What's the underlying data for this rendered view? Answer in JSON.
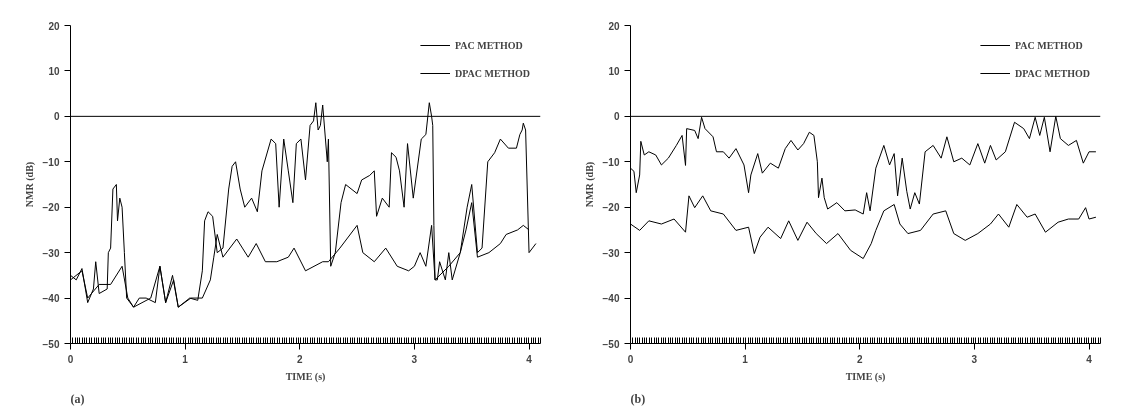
{
  "chart_data": [
    {
      "type": "line",
      "xlabel": "TIME (s)",
      "ylabel": "NMR (dB)",
      "annotations": [
        "(a)"
      ],
      "xlim": [
        0,
        4.1
      ],
      "ylim": [
        -50,
        20
      ],
      "xticks": [
        0,
        1,
        2,
        3,
        4
      ],
      "yticks": [
        -50,
        -40,
        -30,
        -20,
        -10,
        0,
        10,
        20
      ],
      "grid": false,
      "legend": "top right",
      "marker": "none",
      "line_style": "solid",
      "ref_lines": [
        {
          "axis": "y",
          "value": 0,
          "color": "#000000"
        }
      ],
      "series": [
        {
          "name": "PAC METHOD",
          "color": "#000000",
          "x": [
            0,
            0.05,
            0.1,
            0.15,
            0.2,
            0.22,
            0.25,
            0.32,
            0.33,
            0.35,
            0.37,
            0.4,
            0.41,
            0.43,
            0.45,
            0.47,
            0.49,
            0.55,
            0.6,
            0.66,
            0.74,
            0.78,
            0.83,
            0.89,
            0.94,
            1.04,
            1.11,
            1.15,
            1.17,
            1.2,
            1.24,
            1.28,
            1.33,
            1.38,
            1.41,
            1.44,
            1.48,
            1.52,
            1.58,
            1.63,
            1.67,
            1.75,
            1.79,
            1.82,
            1.86,
            1.9,
            1.94,
            1.97,
            2.01,
            2.05,
            2.09,
            2.12,
            2.14,
            2.16,
            2.18,
            2.2,
            2.24,
            2.25,
            2.27,
            2.31,
            2.36,
            2.4,
            2.5,
            2.54,
            2.61,
            2.65,
            2.67,
            2.72,
            2.78,
            2.8,
            2.84,
            2.87,
            2.91,
            2.94,
            2.99,
            3.06,
            3.1,
            3.13,
            3.15,
            3.16,
            3.17,
            3.18,
            3.2,
            3.22,
            3.27,
            3.3,
            3.33,
            3.4,
            3.46,
            3.5,
            3.55,
            3.59,
            3.64,
            3.7,
            3.75,
            3.82,
            3.89,
            3.92,
            3.94,
            3.95,
            3.97,
            4.0,
            4.06
          ],
          "values": [
            -35,
            -36,
            -33.5,
            -41,
            -38,
            -32,
            -39,
            -38,
            -30,
            -29,
            -16,
            -15,
            -23,
            -18,
            -20,
            -30,
            -40,
            -42,
            -40,
            -40,
            -41,
            -33,
            -41,
            -35,
            -42,
            -40,
            -40.5,
            -34,
            -23,
            -21,
            -22,
            -30,
            -29,
            -16,
            -11,
            -10,
            -16,
            -20,
            -18,
            -21,
            -12,
            -5,
            -6,
            -20,
            -5,
            -12,
            -19,
            -6,
            -5,
            -14,
            -2,
            -1,
            3,
            -3,
            -2,
            2.5,
            -10,
            -5,
            -33,
            -30,
            -19,
            -15,
            -17,
            -14,
            -13,
            -12,
            -22,
            -18,
            -20,
            -8,
            -9,
            -12,
            -20,
            -6,
            -18,
            -5,
            -4,
            3,
            0,
            -2,
            -24,
            -36,
            -36,
            -32,
            -36,
            -30,
            -36,
            -30,
            -20,
            -15,
            -30,
            -29,
            -10,
            -8,
            -5,
            -7,
            -7,
            -4,
            -3,
            -1.5,
            -3,
            -30,
            -28
          ]
        },
        {
          "name": "DPAC METHOD",
          "color": "#000000",
          "x": [
            0,
            0.1,
            0.15,
            0.25,
            0.35,
            0.45,
            0.5,
            0.55,
            0.7,
            0.78,
            0.83,
            0.9,
            0.94,
            1.05,
            1.15,
            1.22,
            1.25,
            1.28,
            1.33,
            1.45,
            1.5,
            1.55,
            1.62,
            1.7,
            1.8,
            1.9,
            1.95,
            2.05,
            2.2,
            2.25,
            2.35,
            2.5,
            2.55,
            2.65,
            2.75,
            2.85,
            2.95,
            3.0,
            3.05,
            3.1,
            3.15,
            3.18,
            3.3,
            3.4,
            3.45,
            3.5,
            3.55,
            3.65,
            3.75,
            3.8,
            3.9,
            3.95,
            4.0
          ],
          "values": [
            -36,
            -34,
            -40,
            -37,
            -37,
            -33,
            -40,
            -42,
            -40,
            -33,
            -41,
            -36,
            -42,
            -40,
            -40,
            -36,
            -31,
            -26,
            -31,
            -27,
            -29,
            -31,
            -28,
            -32,
            -32,
            -31,
            -29,
            -34,
            -32,
            -32,
            -29,
            -24,
            -30,
            -32,
            -29,
            -33,
            -34,
            -33,
            -30,
            -33,
            -24,
            -36,
            -33,
            -30,
            -25,
            -19,
            -31,
            -30,
            -28,
            -26,
            -25,
            -24,
            -25
          ]
        }
      ]
    },
    {
      "type": "line",
      "xlabel": "TIME (s)",
      "ylabel": "NMR (dB)",
      "annotations": [
        "(b)"
      ],
      "xlim": [
        0,
        4.1
      ],
      "ylim": [
        -50,
        20
      ],
      "xticks": [
        0,
        1,
        2,
        3,
        4
      ],
      "yticks": [
        -50,
        -40,
        -30,
        -20,
        -10,
        0,
        10,
        20
      ],
      "grid": false,
      "legend": "top right",
      "marker": "none",
      "line_style": "solid",
      "ref_lines": [
        {
          "axis": "y",
          "value": 0,
          "color": "#000000"
        }
      ],
      "series": [
        {
          "name": "PAC METHOD",
          "color": "#000000",
          "x": [
            0,
            0.03,
            0.05,
            0.08,
            0.09,
            0.12,
            0.16,
            0.22,
            0.27,
            0.33,
            0.4,
            0.45,
            0.48,
            0.49,
            0.56,
            0.59,
            0.62,
            0.65,
            0.72,
            0.75,
            0.81,
            0.86,
            0.92,
            0.99,
            1.03,
            1.05,
            1.11,
            1.15,
            1.22,
            1.29,
            1.35,
            1.4,
            1.46,
            1.51,
            1.56,
            1.6,
            1.63,
            1.64,
            1.67,
            1.69,
            1.72,
            1.8,
            1.87,
            1.96,
            2.03,
            2.06,
            2.09,
            2.14,
            2.21,
            2.26,
            2.3,
            2.33,
            2.37,
            2.41,
            2.44,
            2.48,
            2.52,
            2.57,
            2.64,
            2.71,
            2.76,
            2.82,
            2.89,
            2.96,
            3.03,
            3.09,
            3.14,
            3.19,
            3.27,
            3.35,
            3.43,
            3.48,
            3.53,
            3.57,
            3.61,
            3.66,
            3.71,
            3.75,
            3.82,
            3.89,
            3.95,
            4.0,
            4.06
          ],
          "values": [
            -11.4,
            -12.1,
            -16.8,
            -12.9,
            -5.5,
            -8.5,
            -7.8,
            -8.5,
            -10.7,
            -9.2,
            -6.4,
            -4.2,
            -10.8,
            -2.7,
            -3.1,
            -4.9,
            -0.2,
            -2.7,
            -4.5,
            -7.8,
            -7.8,
            -9.2,
            -7.1,
            -10.7,
            -16.8,
            -12.9,
            -8.2,
            -12.5,
            -10.3,
            -11.4,
            -7.1,
            -5.3,
            -7.4,
            -6,
            -3.5,
            -4.2,
            -10,
            -17.9,
            -13.6,
            -17.9,
            -20.4,
            -19,
            -20.8,
            -20.6,
            -21.5,
            -16.8,
            -20.8,
            -11.4,
            -6.4,
            -10.7,
            -8.2,
            -17.5,
            -9.2,
            -16.5,
            -20.4,
            -16.8,
            -19.3,
            -7.8,
            -6.4,
            -9.2,
            -4.5,
            -10,
            -9.2,
            -10.7,
            -6,
            -10.3,
            -6.4,
            -9.6,
            -7.8,
            -1.3,
            -2.7,
            -4.9,
            -0.2,
            -4.2,
            -0.2,
            -7.8,
            0,
            -4.9,
            -6.4,
            -5.3,
            -10.3,
            -7.8,
            -7.8
          ]
        },
        {
          "name": "DPAC METHOD",
          "color": "#000000",
          "x": [
            0,
            0.08,
            0.16,
            0.27,
            0.38,
            0.48,
            0.51,
            0.56,
            0.63,
            0.7,
            0.81,
            0.92,
            1.03,
            1.08,
            1.13,
            1.2,
            1.31,
            1.38,
            1.46,
            1.54,
            1.62,
            1.71,
            1.81,
            1.92,
            2.03,
            2.1,
            2.14,
            2.21,
            2.3,
            2.35,
            2.42,
            2.53,
            2.64,
            2.75,
            2.82,
            2.92,
            3.03,
            3.14,
            3.21,
            3.3,
            3.37,
            3.46,
            3.53,
            3.62,
            3.73,
            3.82,
            3.91,
            3.97,
            4.0,
            4.06
          ],
          "values": [
            -23.7,
            -25.1,
            -23,
            -23.7,
            -22.6,
            -25.5,
            -17.5,
            -20.1,
            -17.5,
            -20.8,
            -21.5,
            -25.1,
            -24.4,
            -30.2,
            -26.6,
            -24.4,
            -26.9,
            -23,
            -27.3,
            -23.3,
            -25.8,
            -28,
            -25.8,
            -29.5,
            -31.3,
            -28,
            -25.1,
            -20.8,
            -19.4,
            -23.7,
            -25.8,
            -25.1,
            -21.5,
            -20.8,
            -25.8,
            -27.3,
            -25.8,
            -23.7,
            -21.5,
            -24.4,
            -19.4,
            -22.2,
            -21.5,
            -25.5,
            -23.3,
            -22.6,
            -22.6,
            -20.1,
            -22.6,
            -22.2
          ]
        }
      ]
    }
  ]
}
